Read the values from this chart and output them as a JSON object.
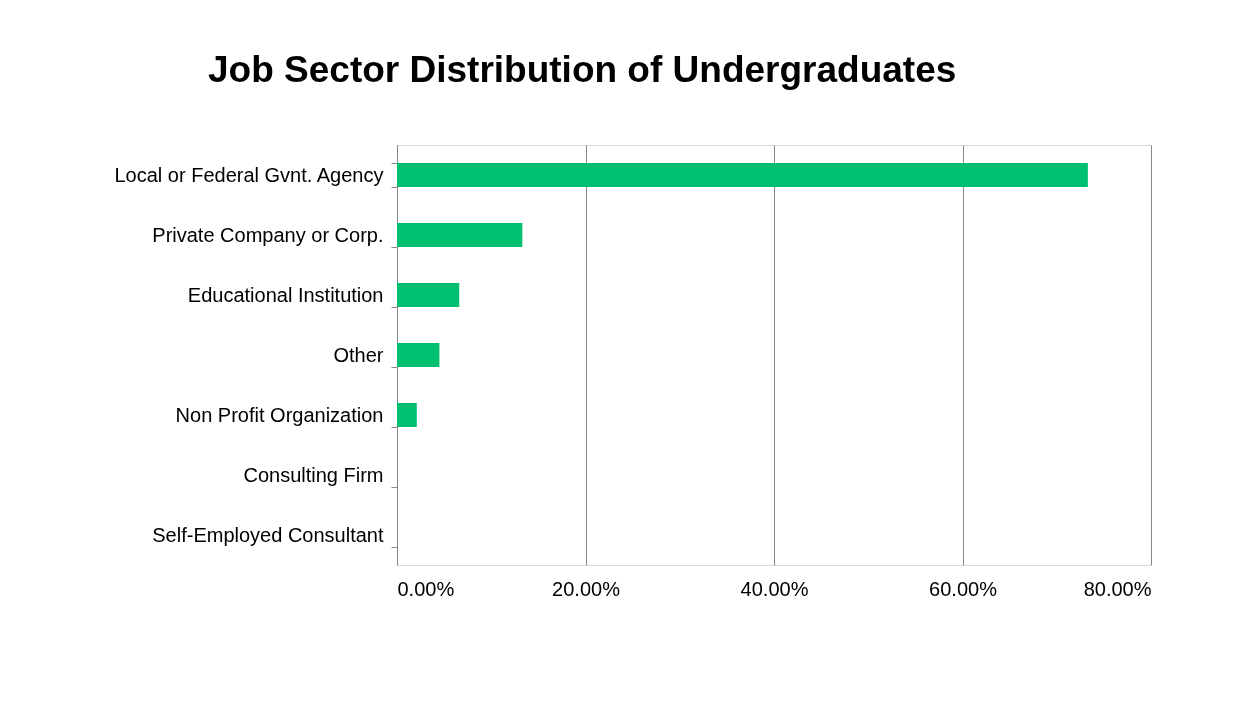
{
  "chart_data": {
    "type": "bar",
    "orientation": "horizontal",
    "title": "Job Sector Distribution of Undergraduates",
    "categories": [
      "Local or Federal Gvnt. Agency",
      "Private Company or Corp.",
      "Educational Institution",
      "Other",
      "Non Profit Organization",
      "Consulting Firm",
      "Self-Employed Consultant"
    ],
    "values": [
      73.3,
      13.3,
      6.6,
      4.5,
      2.1,
      0,
      0
    ],
    "color": "#00bf6f",
    "xlim": [
      0,
      80
    ],
    "xticks": [
      {
        "value": 0,
        "label": "0.00%"
      },
      {
        "value": 20,
        "label": "20.00%"
      },
      {
        "value": 40,
        "label": "40.00%"
      },
      {
        "value": 60,
        "label": "60.00%"
      },
      {
        "value": 80,
        "label": "80.00%"
      }
    ],
    "grid": "x"
  }
}
